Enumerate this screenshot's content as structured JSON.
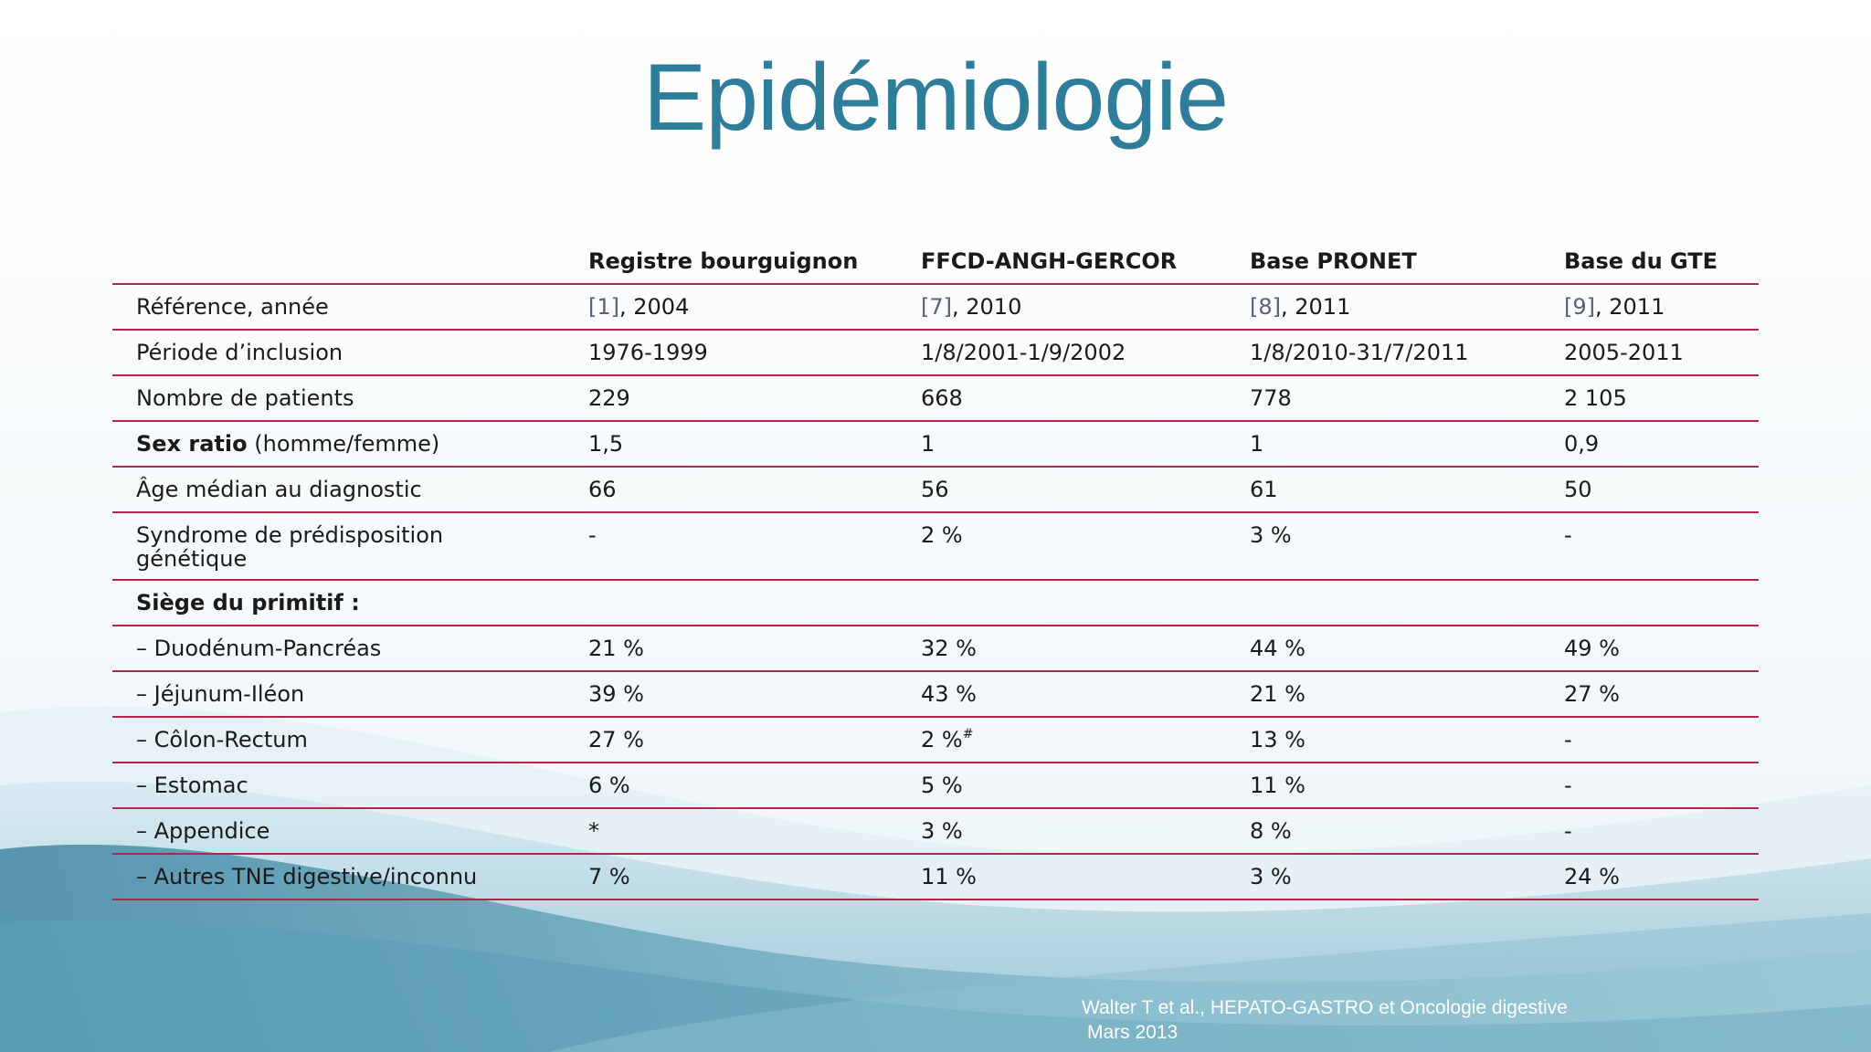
{
  "slide": {
    "title": "Epidémiologie"
  },
  "table": {
    "headers": [
      "",
      "Registre bourguignon",
      "FFCD-ANGH-GERCOR",
      "Base PRONET",
      "Base du GTE"
    ],
    "rows": {
      "reference": {
        "label": "Référence, année",
        "cells": [
          {
            "ref": "[1]",
            "year": ", 2004"
          },
          {
            "ref": "[7]",
            "year": ", 2010"
          },
          {
            "ref": "[8]",
            "year": ", 2011"
          },
          {
            "ref": "[9]",
            "year": ", 2011"
          }
        ]
      },
      "periode": {
        "label": "Période d’inclusion",
        "values": [
          "1976-1999",
          "1/8/2001-1/9/2002",
          "1/8/2010-31/7/2011",
          "2005-2011"
        ]
      },
      "nombre": {
        "label": "Nombre de patients",
        "values": [
          "229",
          "668",
          "778",
          "2 105"
        ]
      },
      "sexratio": {
        "label_bold": "Sex ratio",
        "label_rest": " (homme/femme)",
        "values": [
          "1,5",
          "1",
          "1",
          "0,9"
        ]
      },
      "age": {
        "label": "Âge médian au diagnostic",
        "values": [
          "66",
          "56",
          "61",
          "50"
        ]
      },
      "syndrome": {
        "label": "Syndrome de prédisposition génétique",
        "values": [
          "-",
          "2 %",
          "3 %",
          "-"
        ]
      },
      "siege": {
        "label": "Siège du primitif :"
      },
      "duodenum": {
        "label": "– Duodénum-Pancréas",
        "values": [
          "21 %",
          "32 %",
          "44 %",
          "49 %"
        ]
      },
      "jejunum": {
        "label": "– Jéjunum-Iléon",
        "values": [
          "39 %",
          "43 %",
          "21 %",
          "27 %"
        ]
      },
      "colon": {
        "label": "– Côlon-Rectum",
        "values": [
          "27 %",
          "2 %",
          "13 %",
          "-"
        ],
        "footnote": "#"
      },
      "estomac": {
        "label": "– Estomac",
        "values": [
          "6 %",
          "5 %",
          "11 %",
          "-"
        ]
      },
      "appendice": {
        "label": "– Appendice",
        "values": [
          "*",
          "3 %",
          "8 %",
          "-"
        ]
      },
      "autres": {
        "label": "– Autres TNE digestive/inconnu",
        "values": [
          "7 %",
          "11 %",
          "3 %",
          "24 %"
        ]
      }
    }
  },
  "citation": {
    "line1": "Walter T et al., HEPATO-GASTRO et Oncologie digestive",
    "line2": "Mars 2013"
  },
  "colors": {
    "title": "#2e7d9b",
    "rule": "#b3264a",
    "wave_dark": "#5e9fb6",
    "wave_light": "#cfe6ee"
  }
}
